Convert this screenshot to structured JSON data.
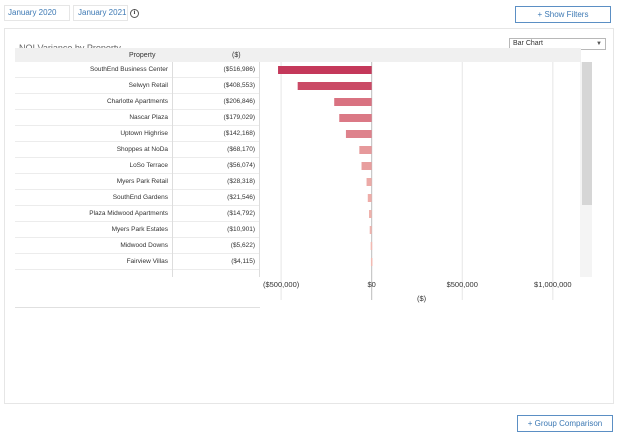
{
  "date_range": {
    "start": "January 2020",
    "end": "January 2021"
  },
  "info_icon": "info-circle-icon",
  "buttons": {
    "show_filters": "+ Show Filters",
    "group_comparison": "+ Group Comparison"
  },
  "panel": {
    "title": "NOI Variance by Property",
    "chart_type_select": "Bar Chart"
  },
  "table": {
    "headers": {
      "property": "Property",
      "value": "($)"
    },
    "rows": [
      {
        "name": "SouthEnd Business Center",
        "value": "($516,986)"
      },
      {
        "name": "Selwyn Retail",
        "value": "($408,553)"
      },
      {
        "name": "Charlotte Apartments",
        "value": "($206,846)"
      },
      {
        "name": "Nascar Plaza",
        "value": "($179,029)"
      },
      {
        "name": "Uptown Highrise",
        "value": "($142,168)"
      },
      {
        "name": "Shoppes at NoDa",
        "value": "($68,170)"
      },
      {
        "name": "LoSo Terrace",
        "value": "($56,074)"
      },
      {
        "name": "Myers Park Retail",
        "value": "($28,318)"
      },
      {
        "name": "SouthEnd Gardens",
        "value": "($21,546)"
      },
      {
        "name": "Plaza Midwood Apartments",
        "value": "($14,792)"
      },
      {
        "name": "Myers Park Estates",
        "value": "($10,901)"
      },
      {
        "name": "Midwood Downs",
        "value": "($5,622)"
      },
      {
        "name": "Fairview Villas",
        "value": "($4,115)"
      }
    ]
  },
  "chart_data": {
    "type": "bar",
    "orientation": "horizontal",
    "categories": [
      "SouthEnd Business Center",
      "Selwyn Retail",
      "Charlotte Apartments",
      "Nascar Plaza",
      "Uptown Highrise",
      "Shoppes at NoDa",
      "LoSo Terrace",
      "Myers Park Retail",
      "SouthEnd Gardens",
      "Plaza Midwood Apartments",
      "Myers Park Estates",
      "Midwood Downs",
      "Fairview Villas"
    ],
    "values": [
      -516986,
      -408553,
      -206846,
      -179029,
      -142168,
      -68170,
      -56074,
      -28318,
      -21546,
      -14792,
      -10901,
      -5622,
      -4115
    ],
    "xlim": [
      -600000,
      1150000
    ],
    "xticks": [
      -500000,
      0,
      500000,
      1000000
    ],
    "xtick_labels": [
      "($500,000)",
      "$0",
      "$500,000",
      "$1,000,000"
    ],
    "xlabel": "($)",
    "colors": {
      "dark": "#c4385a",
      "light": "#f5c2b7"
    }
  }
}
